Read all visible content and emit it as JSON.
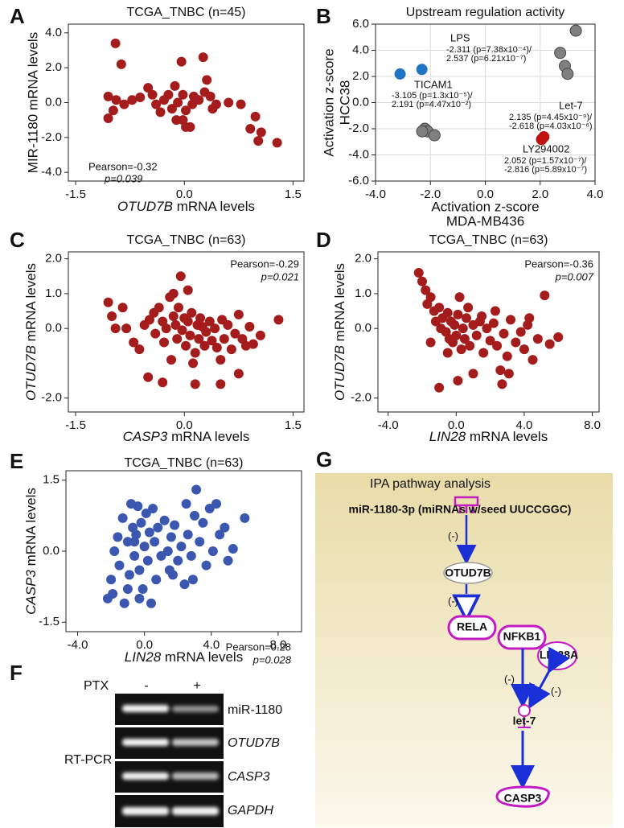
{
  "chart_data": [
    {
      "label": "A",
      "type": "scatter",
      "title": "TCGA_TNBC (n=45)",
      "xlabel": {
        "gene": "OTUD7B",
        "text": "mRNA levels"
      },
      "ylabel": "MIR-1180 mRNA levels",
      "xlim": [
        -1.6,
        1.65
      ],
      "ylim": [
        -4.5,
        4.5
      ],
      "xticks": [
        -1.5,
        {
          "value": 0,
          "label": "0.0"
        },
        1.5
      ],
      "yticks": [
        {
          "value": 4,
          "label": "4.0"
        },
        {
          "value": 2,
          "label": "2.0"
        },
        {
          "value": 0,
          "label": "0.0"
        },
        {
          "value": -2,
          "label": "-2.0"
        },
        {
          "value": -4,
          "label": "-4.0"
        }
      ],
      "series": [
        {
          "color": "#a51c1c",
          "x": [
            -0.95,
            -0.87,
            -1.05,
            -0.94,
            -0.72,
            -1.05,
            -0.98,
            -0.83,
            -0.61,
            -0.5,
            -0.44,
            -0.39,
            -0.33,
            -0.28,
            -0.22,
            -0.17,
            -0.13,
            -0.09,
            -0.04,
            -0.02,
            0.02,
            0.08,
            0.11,
            0.13,
            0.2,
            0.26,
            0.28,
            0.31,
            0.36,
            0.39,
            0.44,
            0.61,
            0.78,
            0.91,
            0.98,
            1.02,
            1.06,
            1.28,
            -0.02,
            -0.11,
            0.02
          ],
          "values": [
            3.4,
            2.2,
            0.35,
            0.15,
            0.15,
            -0.9,
            -0.45,
            -0.1,
            0.3,
            0.85,
            0.45,
            -0.1,
            -0.55,
            0.15,
            0.45,
            -0.35,
            0.95,
            0.0,
            2.35,
            -1.0,
            -0.45,
            -1.4,
            -0.1,
            0.35,
            0.15,
            2.6,
            0.6,
            1.3,
            0.35,
            -0.35,
            -0.1,
            0.0,
            -0.1,
            -1.5,
            -0.8,
            -2.2,
            -1.7,
            -2.3,
            0.45,
            -1.0,
            -1.4
          ]
        }
      ],
      "annotations": [
        "Pearson=-0.32",
        "p=0.039"
      ]
    },
    {
      "label": "B",
      "type": "scatter",
      "title": "Upstream regulation activity",
      "xlabel": [
        "Activation z-score",
        "MDA-MB436"
      ],
      "ylabel": [
        "Activation z-score",
        "HCC38"
      ],
      "xlim": [
        -4,
        4
      ],
      "ylim": [
        -6,
        6
      ],
      "grid": true,
      "xticks": [
        {
          "value": -4,
          "label": "-4.0"
        },
        {
          "value": -2,
          "label": "-2.0"
        },
        {
          "value": 0,
          "label": "0.0"
        },
        {
          "value": 2,
          "label": "2.0"
        },
        {
          "value": 4,
          "label": "4.0"
        }
      ],
      "yticks": [
        {
          "value": 6,
          "label": "6.0"
        },
        {
          "value": 4,
          "label": "4.0"
        },
        {
          "value": 2,
          "label": "2.0"
        },
        {
          "value": 0,
          "label": "0.0"
        },
        {
          "value": -2,
          "label": "-2.0"
        },
        {
          "value": -4,
          "label": "-4.0"
        },
        {
          "value": -6,
          "label": "-6.0"
        }
      ],
      "series": [
        {
          "color": "#808080",
          "x": [
            2.73,
            2.9,
            3.0,
            3.3,
            -2.2,
            -2.1,
            -1.85,
            -2.3
          ],
          "values": [
            3.8,
            2.8,
            2.2,
            5.5,
            -2.0,
            -2.2,
            -2.5,
            -2.2
          ]
        },
        {
          "color": "#1f74c4",
          "x": [
            -2.311,
            -3.105
          ],
          "values": [
            2.537,
            2.191
          ]
        },
        {
          "color": "#c0120f",
          "x": [
            2.135,
            2.052
          ],
          "values": [
            -2.618,
            -2.816
          ]
        }
      ],
      "point_labels": [
        {
          "name": "LPS",
          "lines": [
            "-2.311 (p=7.38x10⁻⁴)/",
            "2.537 (p=6.21x10⁻⁷)"
          ]
        },
        {
          "name": "TICAM1",
          "lines": [
            "-3.105 (p=1.3x10⁻⁵)/",
            "2.191 (p=4.47x10⁻²)"
          ]
        },
        {
          "name": "Let-7",
          "lines": [
            "2.135 (p=4.45x10⁻⁹)/",
            "-2.618 (p=4.03x10⁻⁶)"
          ]
        },
        {
          "name": "LY294002",
          "lines": [
            "2.052 (p=1.57x10⁻⁷)/",
            "-2.816 (p=5.89x10⁻⁷)"
          ]
        }
      ]
    },
    {
      "label": "C",
      "type": "scatter",
      "title": "TCGA_TNBC (n=63)",
      "xlabel": {
        "gene": "CASP3",
        "text": "mRNA levels"
      },
      "ylabel": {
        "gene": "OTUD7B",
        "text": "mRNA levels"
      },
      "xlim": [
        -1.6,
        1.65
      ],
      "ylim": [
        -2.4,
        2.2
      ],
      "xticks": [
        -1.5,
        {
          "value": 0,
          "label": "0.0"
        },
        1.5
      ],
      "yticks": [
        {
          "value": 2,
          "label": "2.0"
        },
        {
          "value": 1,
          "label": "1.0"
        },
        {
          "value": 0,
          "label": "0.0"
        },
        {
          "value": -2,
          "label": "-2.0"
        }
      ],
      "series": [
        {
          "color": "#a51c1c",
          "x": [
            -1.05,
            -1.0,
            -0.85,
            -0.95,
            -0.8,
            -0.7,
            -0.62,
            -0.55,
            -0.48,
            -0.42,
            -0.4,
            -0.35,
            -0.3,
            -0.28,
            -0.25,
            -0.2,
            -0.18,
            -0.15,
            -0.12,
            -0.1,
            -0.08,
            -0.05,
            -0.03,
            0.0,
            0.02,
            0.05,
            0.05,
            0.08,
            0.1,
            0.12,
            0.15,
            0.18,
            0.2,
            0.22,
            0.25,
            0.28,
            0.3,
            0.35,
            0.38,
            0.42,
            0.45,
            0.5,
            0.52,
            0.55,
            0.6,
            0.65,
            0.7,
            0.75,
            0.8,
            0.85,
            0.9,
            0.95,
            1.05,
            1.3,
            -0.5,
            -0.3,
            0.15,
            0.5,
            0.75,
            -0.15
          ],
          "values": [
            0.75,
            0.35,
            0.6,
            0.0,
            0.0,
            -0.4,
            -0.6,
            0.1,
            0.25,
            0.45,
            -0.15,
            0.6,
            0.2,
            -0.4,
            0.0,
            0.9,
            -0.9,
            0.35,
            0.1,
            -0.3,
            0.6,
            1.5,
            -0.05,
            0.3,
            -0.5,
            1.1,
            0.2,
            -0.2,
            0.45,
            -1.0,
            -0.7,
            0.1,
            -0.3,
            0.3,
            0.05,
            -0.5,
            -0.1,
            0.2,
            -0.35,
            0.0,
            -0.55,
            -0.9,
            0.25,
            -0.3,
            0.1,
            -0.6,
            -0.15,
            0.4,
            -0.3,
            -0.5,
            0.05,
            -0.45,
            -0.2,
            0.25,
            -1.4,
            -1.55,
            -1.6,
            -1.6,
            -1.3,
            1.0
          ]
        }
      ],
      "annotations": [
        "Pearson=-0.29",
        "p=0.021"
      ]
    },
    {
      "label": "D",
      "type": "scatter",
      "title": "TCGA_TNBC (n=63)",
      "xlabel": {
        "gene": "LIN28",
        "text": "mRNA levels"
      },
      "ylabel": {
        "gene": "OTUD7B",
        "text": "mRNA levels"
      },
      "xlim": [
        -4.6,
        8.4
      ],
      "ylim": [
        -2.4,
        2.2
      ],
      "xticks": [
        {
          "value": -4,
          "label": "-4.0"
        },
        {
          "value": 0,
          "label": "0.0"
        },
        {
          "value": 4,
          "label": "4.0"
        },
        {
          "value": 8,
          "label": "8.0"
        }
      ],
      "yticks": [
        {
          "value": 2,
          "label": "2.0"
        },
        {
          "value": 1,
          "label": "1.0"
        },
        {
          "value": 0,
          "label": "0.0"
        },
        {
          "value": -2,
          "label": "-2.0"
        }
      ],
      "series": [
        {
          "color": "#a51c1c",
          "x": [
            -2.2,
            -2.0,
            -1.8,
            -1.5,
            -1.3,
            -1.2,
            -1.0,
            -0.9,
            -0.8,
            -0.6,
            -0.5,
            -0.4,
            -0.3,
            -0.2,
            -0.1,
            0.0,
            0.1,
            0.2,
            0.3,
            0.4,
            0.5,
            0.6,
            0.8,
            1.0,
            1.2,
            1.4,
            1.6,
            1.8,
            2.0,
            2.2,
            2.4,
            2.6,
            2.8,
            3.0,
            3.2,
            3.5,
            3.8,
            4.0,
            4.2,
            4.5,
            4.8,
            5.2,
            5.5,
            6.0,
            -1.5,
            -1.0,
            0.1,
            1.0,
            2.7,
            3.1,
            -0.5,
            -1.7,
            0.7,
            1.5,
            4.3,
            2.3
          ],
          "values": [
            1.6,
            1.35,
            1.1,
            0.9,
            0.5,
            0.2,
            0.6,
            0.0,
            0.3,
            -0.1,
            0.45,
            -0.3,
            0.2,
            -0.4,
            0.1,
            -0.2,
            0.4,
            0.9,
            -0.6,
            0.0,
            -0.3,
            0.3,
            -0.5,
            0.1,
            -0.2,
            0.2,
            -0.7,
            0.0,
            -0.35,
            0.15,
            -0.5,
            -1.2,
            -0.15,
            -0.8,
            0.25,
            -0.4,
            -0.1,
            -0.6,
            0.1,
            -0.9,
            -0.3,
            0.95,
            -0.45,
            -0.25,
            -0.4,
            -1.7,
            -1.5,
            -1.3,
            -1.6,
            -1.3,
            -0.7,
            0.7,
            0.6,
            0.35,
            0.3,
            0.5
          ]
        }
      ],
      "annotations": [
        "Pearson=-0.36",
        "p=0.007"
      ]
    },
    {
      "label": "E",
      "type": "scatter",
      "title": "TCGA_TNBC (n=63)",
      "xlabel": {
        "gene": "LIN28",
        "text": "mRNA levels"
      },
      "ylabel": {
        "gene": "CASP3",
        "text": "mRNA levels"
      },
      "xlim": [
        -4.7,
        9.4
      ],
      "ylim": [
        -1.7,
        1.7
      ],
      "xticks": [
        {
          "value": -4,
          "label": "-4.0"
        },
        {
          "value": 0,
          "label": "0.0"
        },
        {
          "value": 4,
          "label": "4.0"
        },
        {
          "value": 8,
          "label": "8.0"
        }
      ],
      "yticks": [
        1.5,
        {
          "value": 0,
          "label": "0.0"
        },
        -1.5
      ],
      "series": [
        {
          "color": "#3b57b0",
          "x": [
            -2.2,
            -2.0,
            -1.8,
            -1.6,
            -1.5,
            -1.3,
            -1.2,
            -1.0,
            -0.9,
            -0.8,
            -0.7,
            -0.6,
            -0.5,
            -0.4,
            -0.3,
            -0.2,
            -0.1,
            0.0,
            0.1,
            0.2,
            0.3,
            0.4,
            0.5,
            0.6,
            0.8,
            1.0,
            1.2,
            1.4,
            1.5,
            1.6,
            1.8,
            2.0,
            2.2,
            2.4,
            2.6,
            2.8,
            3.0,
            3.1,
            3.3,
            3.5,
            3.7,
            3.9,
            4.1,
            4.3,
            4.5,
            4.8,
            5.0,
            5.3,
            6.0,
            2.5,
            -1.9,
            -0.3,
            0.7,
            1.7,
            -1.0,
            -0.6,
            2.9
          ],
          "values": [
            -1.0,
            -0.6,
            0.0,
            0.3,
            -0.3,
            0.7,
            -1.1,
            0.2,
            -0.5,
            1.0,
            0.5,
            -0.1,
            0.35,
            0.95,
            -0.4,
            0.6,
            -0.8,
            0.1,
            0.8,
            -0.2,
            0.4,
            -1.1,
            0.9,
            0.2,
            0.5,
            -0.1,
            0.65,
            0.0,
            -0.4,
            0.3,
            0.55,
            -0.2,
            0.1,
            -0.7,
            0.35,
            -0.1,
            0.75,
            1.3,
            0.2,
            0.6,
            -0.3,
            0.9,
            0.0,
            1.0,
            0.35,
            0.5,
            -0.2,
            0.05,
            0.7,
            1.0,
            -0.9,
            -1.0,
            -0.6,
            -0.5,
            -0.8,
            0.2,
            -0.6
          ]
        }
      ],
      "annotations": [
        "Pearson=0.28",
        "p=0.028"
      ]
    }
  ],
  "gel": {
    "label": "F",
    "treatment": "PTX",
    "lanes": [
      "-",
      "+"
    ],
    "method": "RT-PCR",
    "genes": [
      "miR-1180",
      "OTUD7B",
      "CASP3",
      "GAPDH"
    ]
  },
  "pathway": {
    "label": "G",
    "title": "IPA pathway analysis",
    "source": "miR-1180-3p (miRNAs w/seed UUCCGGC)",
    "nodes": [
      "OTUD7B",
      "RELA",
      "NFKB1",
      "LIN28A",
      "let-7",
      "CASP3"
    ],
    "edge_labels": [
      "(-)",
      "(-)",
      "(-)",
      "(-)"
    ]
  }
}
